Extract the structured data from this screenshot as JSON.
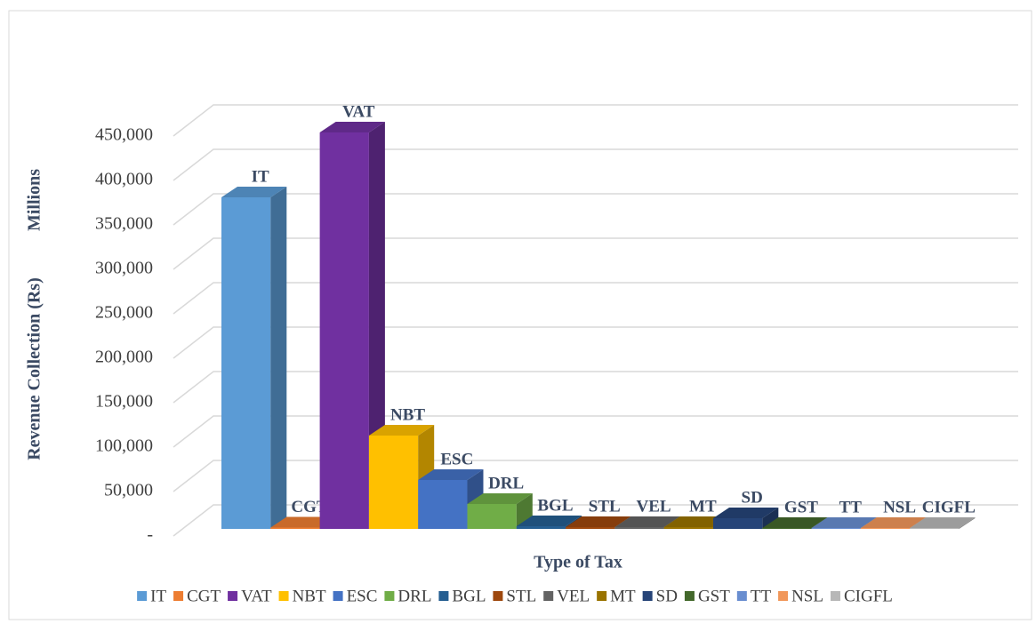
{
  "chart_data": {
    "type": "bar3d",
    "y_label": "Revenue Collection (Rs)",
    "y_unit": "Millions",
    "x_label": "Type of Tax",
    "categories": [
      "IT",
      "CGT",
      "VAT",
      "NBT",
      "ESC",
      "DRL",
      "BGL",
      "STL",
      "VEL",
      "MT",
      "SD",
      "GST",
      "TT",
      "NSL",
      "CIGFL"
    ],
    "values": [
      373000,
      1500,
      446000,
      105000,
      55000,
      28000,
      3000,
      2000,
      2000,
      2000,
      12000,
      1000,
      1000,
      1000,
      1000
    ],
    "colors": [
      "#5b9bd5",
      "#ed7d31",
      "#7030a0",
      "#ffc000",
      "#4472c4",
      "#70ad47",
      "#255e91",
      "#9e480e",
      "#636363",
      "#997300",
      "#264478",
      "#43682b",
      "#698ed0",
      "#f1975a",
      "#b7b7b7"
    ],
    "ylim": [
      0,
      450000
    ],
    "yticks": [
      {
        "value": 0,
        "label": "-"
      },
      {
        "value": 50000,
        "label": "50,000"
      },
      {
        "value": 100000,
        "label": "100,000"
      },
      {
        "value": 150000,
        "label": "150,000"
      },
      {
        "value": 200000,
        "label": "200,000"
      },
      {
        "value": 250000,
        "label": "250,000"
      },
      {
        "value": 300000,
        "label": "300,000"
      },
      {
        "value": 350000,
        "label": "350,000"
      },
      {
        "value": 400000,
        "label": "400,000"
      },
      {
        "value": 450000,
        "label": "450,000"
      }
    ],
    "grid": true
  }
}
